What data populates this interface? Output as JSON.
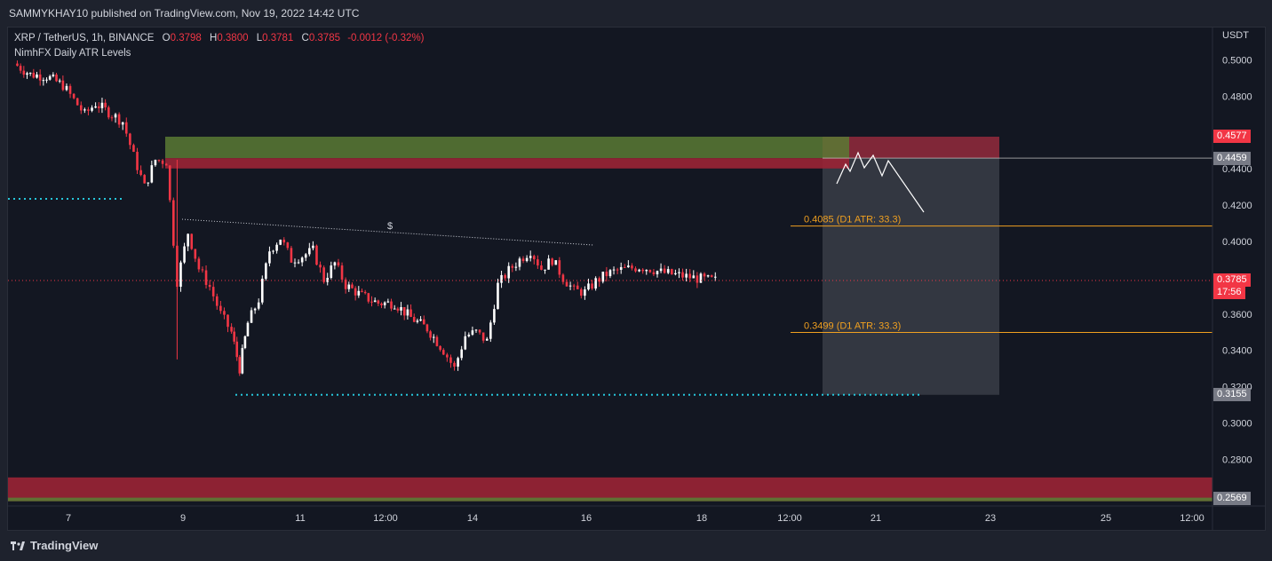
{
  "header": {
    "publisher_line": "SAMMYKHAY10 published on TradingView.com, Nov 19, 2022 14:42 UTC"
  },
  "legend": {
    "symbol": "XRP / TetherUS, 1h, BINANCE",
    "open_label": "O",
    "open": "0.3798",
    "high_label": "H",
    "high": "0.3800",
    "low_label": "L",
    "low": "0.3781",
    "close_label": "C",
    "close": "0.3785",
    "change": "-0.0012 (-0.32%)",
    "indicator": "NimhFX Daily ATR Levels"
  },
  "axis": {
    "currency": "USDT",
    "y_ticks": [
      "0.5000",
      "0.4800",
      "0.4400",
      "0.4200",
      "0.4000",
      "0.3600",
      "0.3400",
      "0.3200",
      "0.3000",
      "0.2800"
    ],
    "x_ticks": [
      "7",
      "9",
      "11",
      "12:00",
      "14",
      "16",
      "18",
      "12:00",
      "21",
      "23",
      "25",
      "12:00"
    ]
  },
  "price_tags": {
    "resistance": "0.4577",
    "target_top": "0.4459",
    "current_price": "0.3785",
    "countdown": "17:56",
    "stop_low": "0.3155",
    "support": "0.2569"
  },
  "annotations": {
    "atr_upper": "0.4085 (D1 ATR: 33.3)",
    "atr_lower": "0.3499 (D1 ATR: 33.3)",
    "liquidity_mark": "$"
  },
  "colors": {
    "up": "#ffffff",
    "down": "#f23645",
    "supply_zone": "#9b2335",
    "demand_zone": "#5a7a34",
    "atr_line": "#f0a020",
    "dotted_level": "#26c6da",
    "projection_box": "#3a3d47"
  },
  "chart_data": {
    "type": "candlestick",
    "title": "XRP / TetherUS, 1h, BINANCE",
    "ylabel": "USDT",
    "ylim": [
      0.2569,
      0.515
    ],
    "x": [
      "7",
      "9",
      "11",
      "12:00",
      "14",
      "16",
      "18",
      "12:00",
      "21",
      "23",
      "25",
      "12:00"
    ],
    "price_path": [
      [
        6.0,
        0.498
      ],
      [
        6.3,
        0.492
      ],
      [
        6.6,
        0.491
      ],
      [
        6.9,
        0.486
      ],
      [
        7.1,
        0.478
      ],
      [
        7.3,
        0.47
      ],
      [
        7.5,
        0.476
      ],
      [
        7.8,
        0.47
      ],
      [
        8.0,
        0.466
      ],
      [
        8.2,
        0.447
      ],
      [
        8.4,
        0.43
      ],
      [
        8.6,
        0.445
      ],
      [
        8.8,
        0.444
      ],
      [
        9.0,
        0.378
      ],
      [
        9.2,
        0.405
      ],
      [
        9.4,
        0.385
      ],
      [
        9.6,
        0.375
      ],
      [
        9.8,
        0.36
      ],
      [
        10.0,
        0.35
      ],
      [
        10.15,
        0.33
      ],
      [
        10.3,
        0.355
      ],
      [
        10.5,
        0.368
      ],
      [
        10.7,
        0.395
      ],
      [
        10.9,
        0.402
      ],
      [
        11.1,
        0.39
      ],
      [
        11.3,
        0.392
      ],
      [
        11.5,
        0.395
      ],
      [
        11.7,
        0.379
      ],
      [
        11.9,
        0.388
      ],
      [
        12.1,
        0.376
      ],
      [
        12.4,
        0.37
      ],
      [
        12.7,
        0.366
      ],
      [
        13.0,
        0.366
      ],
      [
        13.3,
        0.358
      ],
      [
        13.6,
        0.352
      ],
      [
        13.9,
        0.34
      ],
      [
        14.1,
        0.33
      ],
      [
        14.3,
        0.348
      ],
      [
        14.5,
        0.35
      ],
      [
        14.7,
        0.345
      ],
      [
        14.9,
        0.376
      ],
      [
        15.1,
        0.384
      ],
      [
        15.3,
        0.39
      ],
      [
        15.5,
        0.395
      ],
      [
        15.7,
        0.385
      ],
      [
        15.9,
        0.39
      ],
      [
        16.1,
        0.38
      ],
      [
        16.3,
        0.373
      ],
      [
        16.5,
        0.372
      ],
      [
        16.7,
        0.378
      ],
      [
        16.9,
        0.382
      ],
      [
        17.1,
        0.384
      ],
      [
        17.3,
        0.385
      ],
      [
        17.5,
        0.386
      ],
      [
        17.7,
        0.385
      ],
      [
        17.9,
        0.383
      ],
      [
        18.1,
        0.382
      ],
      [
        18.3,
        0.381
      ],
      [
        18.5,
        0.38
      ],
      [
        18.7,
        0.379
      ],
      [
        18.9,
        0.3785
      ]
    ],
    "levels": {
      "supply_zone": [
        0.4402,
        0.4459
      ],
      "demand_zone": [
        0.4459,
        0.4577
      ],
      "atr_upper": 0.4085,
      "atr_lower": 0.3499,
      "current": 0.3785,
      "liquidity_low": 0.3155,
      "support_zone": [
        0.2569,
        0.27
      ],
      "sell_box": [
        0.3155,
        0.4577
      ]
    },
    "grid": false,
    "legend": "top-left"
  }
}
